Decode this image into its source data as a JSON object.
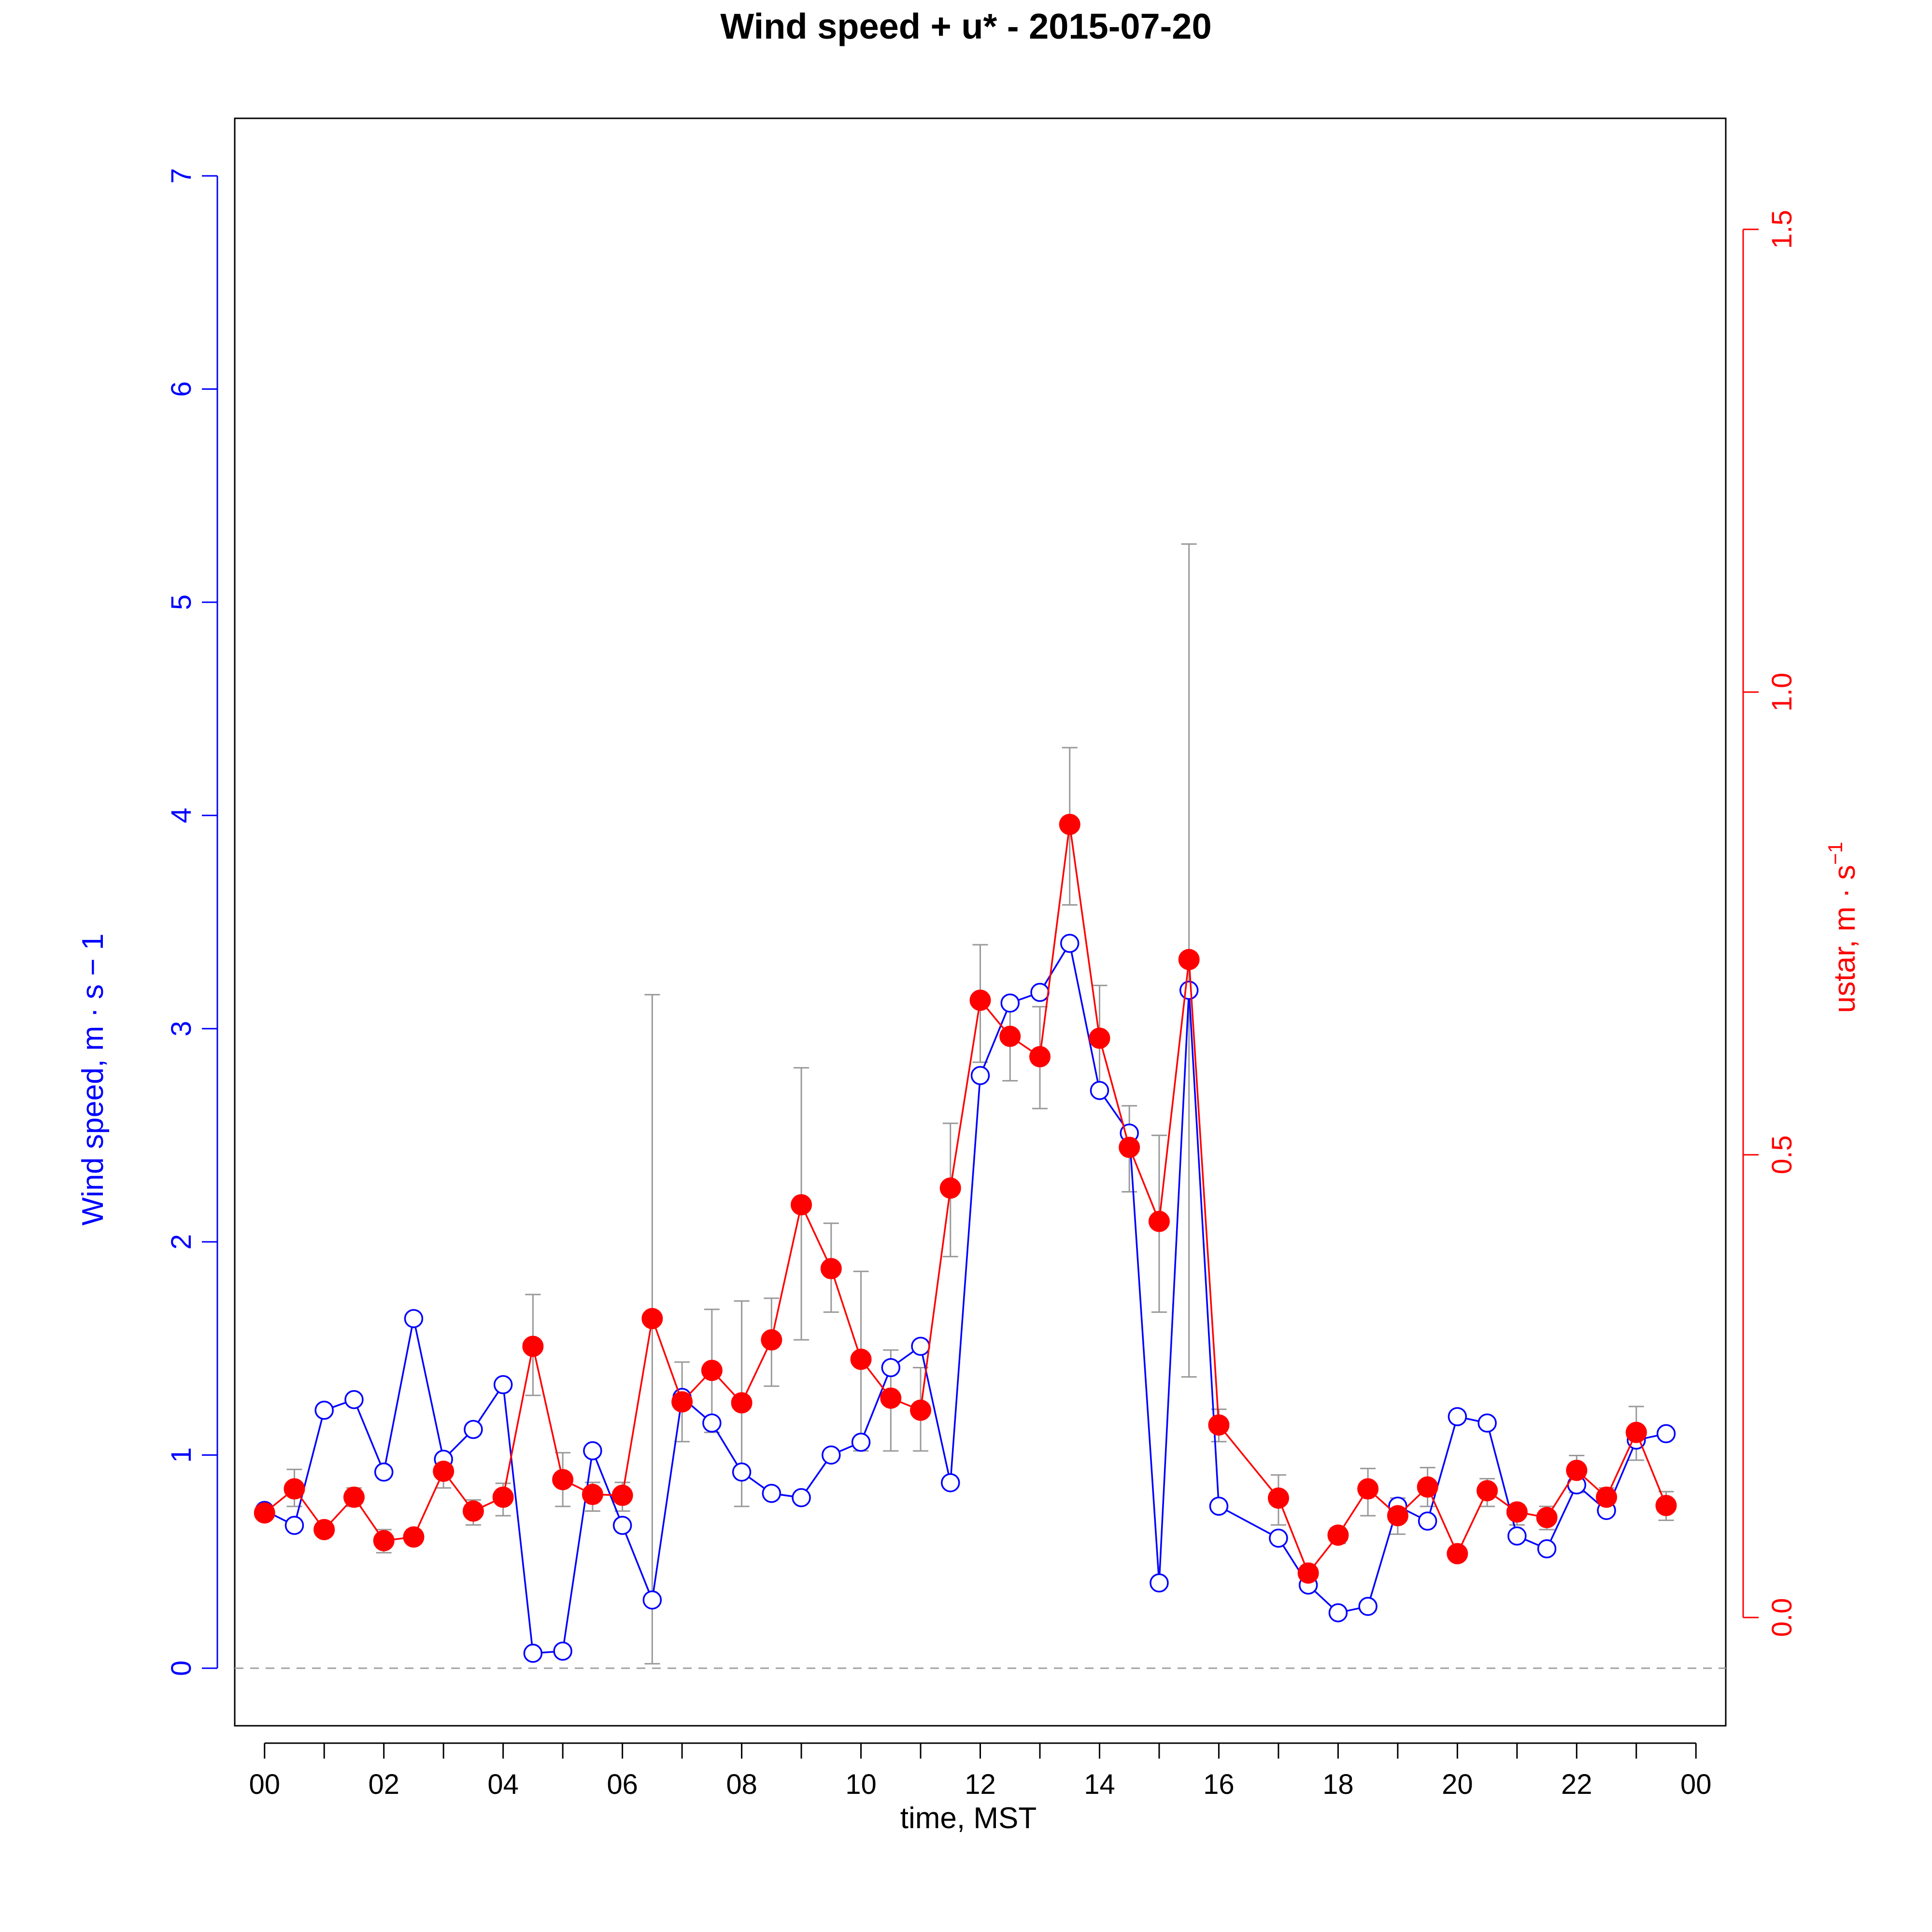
{
  "chart_data": {
    "type": "line",
    "title": "Wind speed + u* -  2015-07-20",
    "xlabel": "time, MST",
    "ylabel_left": "Wind speed, m · s − 1",
    "ylabel_right_main": "ustar, m · s",
    "ylabel_right_sup": "−1",
    "xlim": [
      -0.5,
      24.5
    ],
    "ylim_left": [
      -0.27,
      7.27
    ],
    "ylim_right": [
      -0.117,
      1.62
    ],
    "x_ticks": [
      0,
      1,
      2,
      3,
      4,
      5,
      6,
      7,
      8,
      9,
      10,
      11,
      12,
      13,
      14,
      15,
      16,
      17,
      18,
      19,
      20,
      21,
      22,
      23,
      24
    ],
    "x_tick_labels": [
      {
        "x": 0,
        "label": "00"
      },
      {
        "x": 2,
        "label": "02"
      },
      {
        "x": 4,
        "label": "04"
      },
      {
        "x": 6,
        "label": "06"
      },
      {
        "x": 8,
        "label": "08"
      },
      {
        "x": 10,
        "label": "10"
      },
      {
        "x": 12,
        "label": "12"
      },
      {
        "x": 14,
        "label": "14"
      },
      {
        "x": 16,
        "label": "16"
      },
      {
        "x": 18,
        "label": "18"
      },
      {
        "x": 20,
        "label": "20"
      },
      {
        "x": 22,
        "label": "22"
      },
      {
        "x": 24,
        "label": "00"
      }
    ],
    "left_ticks": [
      {
        "v": 0,
        "label": "0"
      },
      {
        "v": 1,
        "label": "1"
      },
      {
        "v": 2,
        "label": "2"
      },
      {
        "v": 3,
        "label": "3"
      },
      {
        "v": 4,
        "label": "4"
      },
      {
        "v": 5,
        "label": "5"
      },
      {
        "v": 6,
        "label": "6"
      },
      {
        "v": 7,
        "label": "7"
      }
    ],
    "right_ticks": [
      {
        "v": 0.0,
        "label": "0.0"
      },
      {
        "v": 0.5,
        "label": "0.5"
      },
      {
        "v": 1.0,
        "label": "1.0"
      },
      {
        "v": 1.5,
        "label": "1.5"
      }
    ],
    "reference_line": {
      "axis": "left",
      "value": 0
    },
    "colors": {
      "wind": "#0000ff",
      "ustar": "#ff0000",
      "error_bars": "#999999",
      "reference": "#a0a0a0",
      "frame": "#000000"
    },
    "series": [
      {
        "name": "Wind speed",
        "axis": "left",
        "marker": "open-circle",
        "x": [
          0,
          0.5,
          1,
          1.5,
          2,
          2.5,
          3,
          3.5,
          4,
          4.5,
          5,
          5.5,
          6,
          6.5,
          7,
          7.5,
          8,
          8.5,
          9,
          9.5,
          10,
          10.5,
          11,
          11.5,
          12,
          12.5,
          13,
          13.5,
          14,
          14.5,
          15,
          15.5,
          16,
          17,
          17.5,
          18,
          18.5,
          19,
          19.5,
          20,
          20.5,
          21,
          21.5,
          22,
          22.5,
          23,
          23.5
        ],
        "values": [
          0.74,
          0.67,
          1.21,
          1.26,
          0.92,
          1.64,
          0.98,
          1.12,
          1.33,
          0.07,
          0.08,
          1.02,
          0.67,
          0.32,
          1.27,
          1.15,
          0.92,
          0.82,
          0.8,
          1.0,
          1.06,
          1.41,
          1.51,
          0.87,
          2.78,
          3.12,
          3.17,
          3.4,
          2.71,
          2.51,
          0.4,
          3.18,
          0.76,
          0.61,
          0.39,
          0.26,
          0.29,
          0.76,
          0.69,
          1.18,
          1.15,
          0.62,
          0.56,
          0.86,
          0.74,
          1.07,
          1.1
        ]
      },
      {
        "name": "ustar",
        "axis": "right",
        "marker": "filled-circle",
        "x": [
          0,
          0.5,
          1,
          1.5,
          2,
          2.5,
          3,
          3.5,
          4,
          4.5,
          5,
          5.5,
          6,
          6.5,
          7,
          7.5,
          8,
          8.5,
          9,
          9.5,
          10,
          10.5,
          11,
          11.5,
          12,
          12.5,
          13,
          13.5,
          14,
          14.5,
          15,
          15.5,
          16,
          17,
          17.5,
          18,
          18.5,
          19,
          19.5,
          20,
          20.5,
          21,
          21.5,
          22,
          22.5,
          23,
          23.5
        ],
        "values": [
          0.113,
          0.139,
          0.095,
          0.13,
          0.083,
          0.087,
          0.158,
          0.115,
          0.13,
          0.293,
          0.149,
          0.133,
          0.132,
          0.323,
          0.233,
          0.267,
          0.232,
          0.3,
          0.446,
          0.377,
          0.279,
          0.237,
          0.224,
          0.464,
          0.667,
          0.628,
          0.606,
          0.857,
          0.626,
          0.508,
          0.428,
          0.711,
          0.208,
          0.129,
          0.048,
          0.089,
          0.139,
          0.11,
          0.141,
          0.069,
          0.137,
          0.114,
          0.108,
          0.159,
          0.13,
          0.2,
          0.121
        ]
      }
    ],
    "error_bars": {
      "axis": "right",
      "x": [
        0.5,
        1,
        1.5,
        2,
        2.5,
        3,
        3.5,
        4,
        4.5,
        5,
        5.5,
        6,
        6.5,
        7,
        7.5,
        8,
        8.5,
        9,
        9.5,
        10,
        10.5,
        11,
        11.5,
        12,
        12.5,
        13,
        13.5,
        14,
        14.5,
        15,
        15.5,
        16,
        17,
        17.5,
        18,
        18.5,
        19,
        19.5,
        20.5,
        21,
        21.5,
        22,
        22.5,
        23,
        23.5
      ],
      "low": [
        0.12,
        0.09,
        0.12,
        0.07,
        0.08,
        0.14,
        0.1,
        0.11,
        0.24,
        0.12,
        0.115,
        0.115,
        -0.05,
        0.19,
        0.2,
        0.12,
        0.25,
        0.3,
        0.33,
        0.18,
        0.18,
        0.18,
        0.39,
        0.6,
        0.58,
        0.55,
        0.77,
        0.565,
        0.46,
        0.33,
        0.26,
        0.19,
        0.1,
        0.04,
        0.08,
        0.11,
        0.09,
        0.12,
        0.12,
        0.1,
        0.095,
        0.135,
        0.11,
        0.17,
        0.105
      ],
      "high": [
        0.16,
        0.1,
        0.14,
        0.095,
        0.095,
        0.176,
        0.127,
        0.145,
        0.349,
        0.178,
        0.146,
        0.146,
        0.673,
        0.276,
        0.333,
        0.342,
        0.345,
        0.594,
        0.426,
        0.374,
        0.289,
        0.27,
        0.534,
        0.727,
        0.67,
        0.66,
        0.94,
        0.683,
        0.553,
        0.521,
        1.16,
        0.225,
        0.154,
        0.056,
        0.097,
        0.161,
        0.129,
        0.162,
        0.15,
        0.122,
        0.12,
        0.175,
        0.14,
        0.228,
        0.136
      ]
    }
  }
}
